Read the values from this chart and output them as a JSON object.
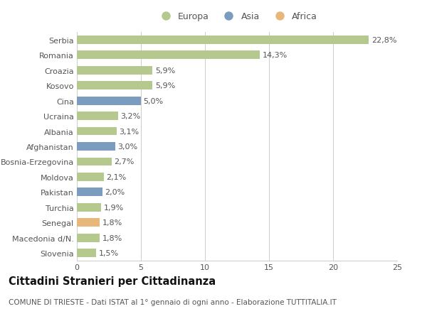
{
  "categories": [
    "Slovenia",
    "Macedonia d/N.",
    "Senegal",
    "Turchia",
    "Pakistan",
    "Moldova",
    "Bosnia-Erzegovina",
    "Afghanistan",
    "Albania",
    "Ucraina",
    "Cina",
    "Kosovo",
    "Croazia",
    "Romania",
    "Serbia"
  ],
  "values": [
    1.5,
    1.8,
    1.8,
    1.9,
    2.0,
    2.1,
    2.7,
    3.0,
    3.1,
    3.2,
    5.0,
    5.9,
    5.9,
    14.3,
    22.8
  ],
  "labels": [
    "1,5%",
    "1,8%",
    "1,8%",
    "1,9%",
    "2,0%",
    "2,1%",
    "2,7%",
    "3,0%",
    "3,1%",
    "3,2%",
    "5,0%",
    "5,9%",
    "5,9%",
    "14,3%",
    "22,8%"
  ],
  "continents": [
    "Europa",
    "Europa",
    "Africa",
    "Europa",
    "Asia",
    "Europa",
    "Europa",
    "Asia",
    "Europa",
    "Europa",
    "Asia",
    "Europa",
    "Europa",
    "Europa",
    "Europa"
  ],
  "colors": {
    "Europa": "#b5c98e",
    "Asia": "#7b9bbf",
    "Africa": "#e8b87a"
  },
  "legend_labels": [
    "Europa",
    "Asia",
    "Africa"
  ],
  "legend_colors": [
    "#b5c98e",
    "#7b9bbf",
    "#e8b87a"
  ],
  "title": "Cittadini Stranieri per Cittadinanza",
  "subtitle": "COMUNE DI TRIESTE - Dati ISTAT al 1° gennaio di ogni anno - Elaborazione TUTTITALIA.IT",
  "xlim": [
    0,
    25
  ],
  "xticks": [
    0,
    5,
    10,
    15,
    20,
    25
  ],
  "bar_height": 0.55,
  "background_color": "#ffffff",
  "grid_color": "#cccccc",
  "text_color": "#555555",
  "label_fontsize": 8,
  "tick_fontsize": 8,
  "title_fontsize": 10.5,
  "subtitle_fontsize": 7.5
}
